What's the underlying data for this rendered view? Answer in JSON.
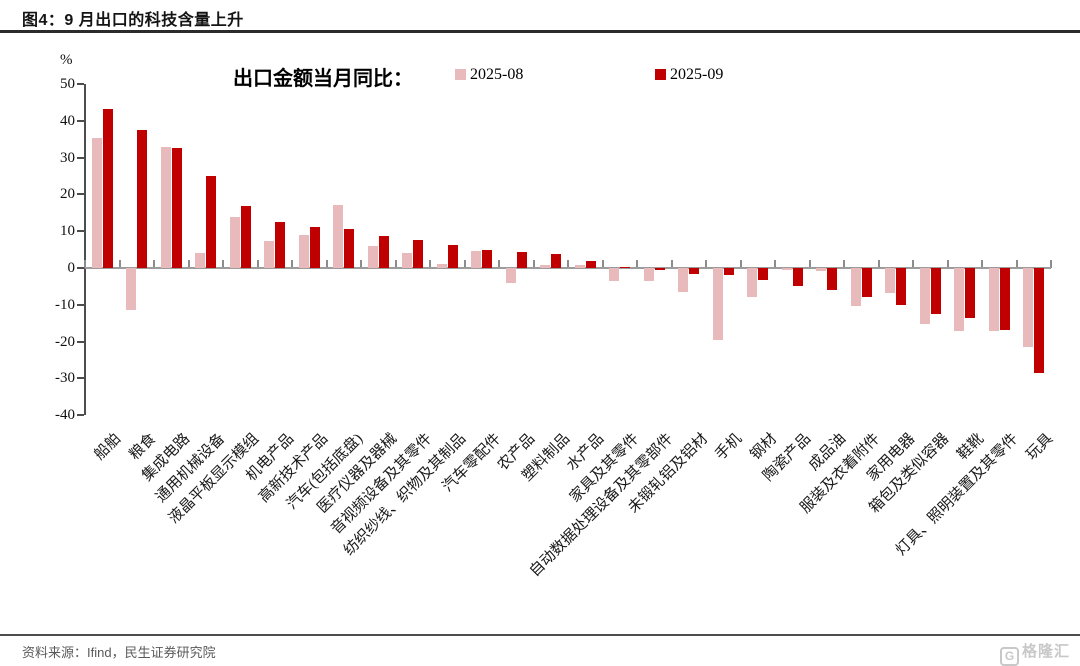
{
  "figure": {
    "title": "图4：9 月出口的科技含量上升",
    "source": "资料来源：Ifind，民生证券研究院",
    "watermark_letter": "G",
    "watermark_text": "格隆汇"
  },
  "chart_data": {
    "type": "bar",
    "title": "出口金额当月同比：",
    "unit_label": "%",
    "legend_position": "top",
    "grid": false,
    "ylim": [
      -40,
      50
    ],
    "ytick_interval": 10,
    "categories": [
      "船舶",
      "粮食",
      "集成电路",
      "通用机械设备",
      "液晶平板显示模组",
      "机电产品",
      "高新技术产品",
      "汽车(包括底盘)",
      "医疗仪器及器械",
      "音视频设备及其零件",
      "纺织纱线、织物及其制品",
      "汽车零配件",
      "农产品",
      "塑料制品",
      "水产品",
      "家具及其零件",
      "自动数据处理设备及其零部件",
      "未锻轧铝及铝材",
      "手机",
      "钢材",
      "陶瓷产品",
      "成品油",
      "服装及衣着附件",
      "家用电器",
      "箱包及类似容器",
      "鞋靴",
      "灯具、照明装置及其零件",
      "玩具"
    ],
    "series": [
      {
        "name": "2025-08",
        "color": "#e9babc",
        "values": [
          35.2,
          -11.5,
          32.9,
          4.1,
          13.9,
          7.3,
          9.0,
          17.1,
          6.0,
          4.0,
          1.2,
          4.5,
          -4.2,
          0.7,
          0.7,
          -3.6,
          -3.6,
          -6.6,
          -19.6,
          -7.8,
          -0.6,
          -0.7,
          -10.4,
          -6.7,
          -15.1,
          -17.1,
          -17.1,
          -21.5
        ]
      },
      {
        "name": "2025-09",
        "color": "#c00000",
        "values": [
          43.1,
          37.4,
          32.7,
          24.9,
          16.8,
          12.5,
          11.2,
          10.7,
          8.7,
          7.6,
          6.3,
          5.0,
          4.3,
          3.7,
          1.9,
          0.4,
          -0.6,
          -1.7,
          -1.9,
          -3.3,
          -5.0,
          -6.1,
          -8.0,
          -10.0,
          -12.6,
          -13.7,
          -16.8,
          -28.4
        ]
      }
    ]
  },
  "colors": {
    "series_aug": "#e9babc",
    "series_sep": "#c00000",
    "axis": "#4d4d4d",
    "zero_line": "#9c9c9c",
    "footer_text": "#595959"
  }
}
